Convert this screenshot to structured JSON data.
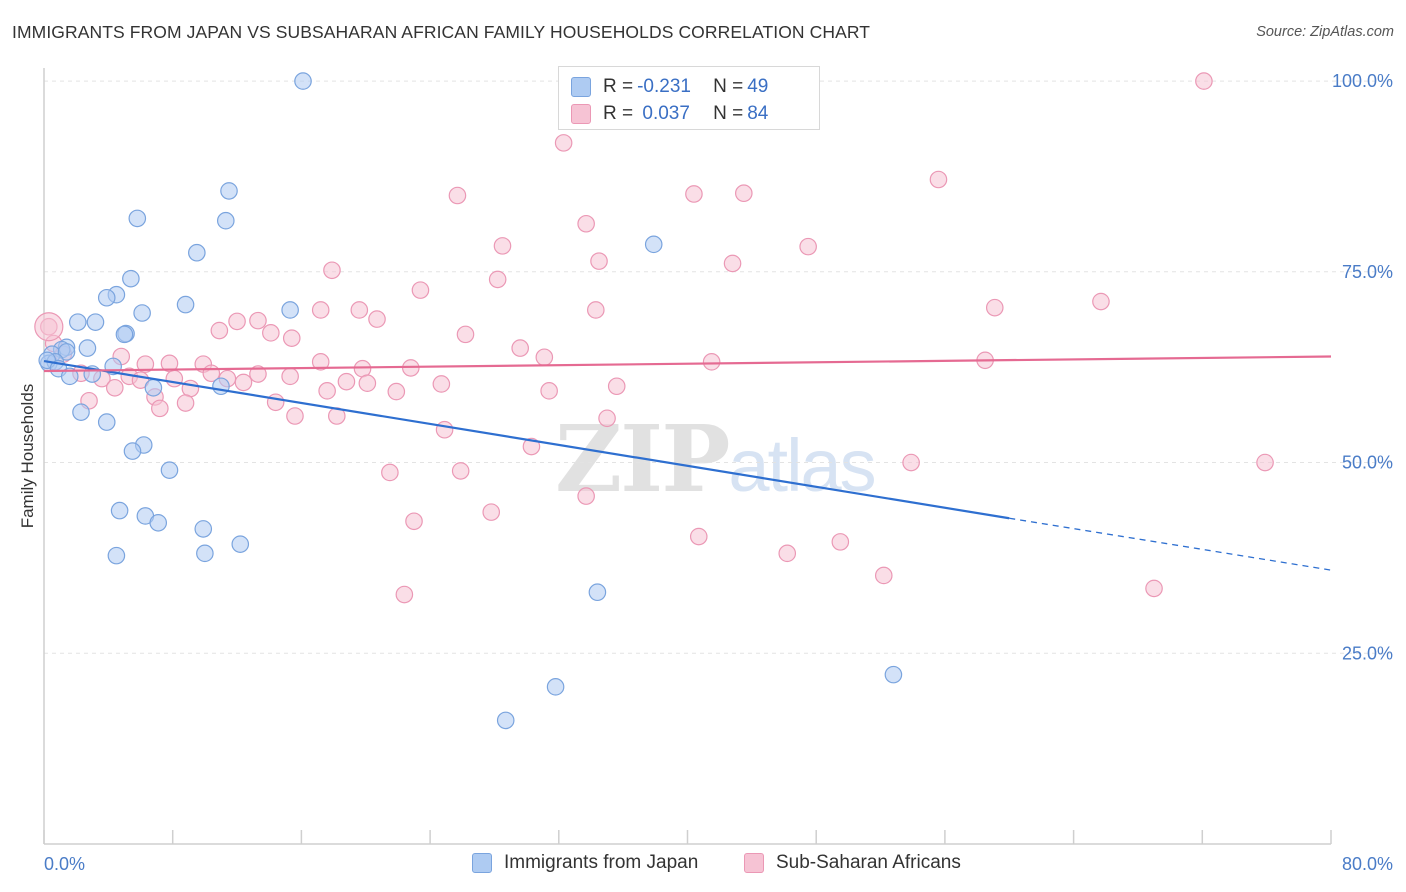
{
  "title": "IMMIGRANTS FROM JAPAN VS SUBSAHARAN AFRICAN FAMILY HOUSEHOLDS CORRELATION CHART",
  "source": "Source: ZipAtlas.com",
  "watermark": {
    "zip": "ZIP",
    "atlas": "atlas"
  },
  "legend": {
    "series1": {
      "r_label": "R = ",
      "r_value": "-0.231",
      "n_label": "N = ",
      "n_value": "49"
    },
    "series2": {
      "r_label": "R = ",
      "r_value": " 0.037",
      "n_label": "N = ",
      "n_value": "84"
    }
  },
  "bottom_legend": {
    "series1": "Immigrants from Japan",
    "series2": "Sub-Saharan Africans"
  },
  "colors": {
    "blue_fill": "#aecbf2",
    "blue_stroke": "#7aa4de",
    "blue_line": "#2e6fd0",
    "pink_fill": "#f6c3d4",
    "pink_stroke": "#eb98b5",
    "pink_line": "#e56a92"
  },
  "chart_data": {
    "type": "scatter",
    "title": "IMMIGRANTS FROM JAPAN VS SUBSAHARAN AFRICAN FAMILY HOUSEHOLDS CORRELATION CHART",
    "xlabel": "",
    "ylabel": "Family Households",
    "xlim": [
      0,
      80
    ],
    "ylim": [
      0,
      102.5
    ],
    "x_tick_labels": [
      "0.0%",
      "80.0%"
    ],
    "y_ticks": [
      25,
      50,
      75,
      100
    ],
    "y_tick_labels": [
      "25.0%",
      "50.0%",
      "75.0%",
      "100.0%"
    ],
    "series": [
      {
        "name": "Immigrants from Japan",
        "color": "blue",
        "trend": {
          "x0": 0,
          "y0": 63.3,
          "x1": 60,
          "y1": 42.7,
          "dash_to_x": 80,
          "dash_to_y": 35.9
        },
        "points": [
          [
            16.1,
            100.0
          ],
          [
            11.5,
            85.6
          ],
          [
            5.8,
            82.0
          ],
          [
            11.3,
            81.7
          ],
          [
            9.5,
            77.5
          ],
          [
            37.9,
            78.6
          ],
          [
            5.4,
            74.1
          ],
          [
            4.5,
            72.0
          ],
          [
            3.9,
            71.6
          ],
          [
            8.8,
            70.7
          ],
          [
            15.3,
            70.0
          ],
          [
            6.1,
            69.6
          ],
          [
            2.1,
            68.4
          ],
          [
            3.2,
            68.4
          ],
          [
            5.1,
            66.9
          ],
          [
            5.0,
            66.8
          ],
          [
            1.4,
            65.1
          ],
          [
            2.7,
            65.0
          ],
          [
            1.1,
            64.8
          ],
          [
            0.5,
            64.2
          ],
          [
            1.4,
            64.5
          ],
          [
            0.3,
            63.0
          ],
          [
            0.7,
            63.2
          ],
          [
            0.2,
            63.4
          ],
          [
            4.3,
            62.6
          ],
          [
            0.9,
            62.3
          ],
          [
            3.0,
            61.6
          ],
          [
            1.6,
            61.3
          ],
          [
            6.8,
            59.8
          ],
          [
            11.0,
            60.0
          ],
          [
            2.3,
            56.6
          ],
          [
            3.9,
            55.3
          ],
          [
            6.2,
            52.3
          ],
          [
            5.5,
            51.5
          ],
          [
            7.8,
            49.0
          ],
          [
            4.7,
            43.7
          ],
          [
            6.3,
            43.0
          ],
          [
            7.1,
            42.1
          ],
          [
            9.9,
            41.3
          ],
          [
            12.2,
            39.3
          ],
          [
            4.5,
            37.8
          ],
          [
            10.0,
            38.1
          ],
          [
            34.4,
            33.0
          ],
          [
            31.8,
            20.6
          ],
          [
            28.7,
            16.2
          ],
          [
            52.8,
            22.2
          ]
        ]
      },
      {
        "name": "Sub-Saharan Africans",
        "color": "pink",
        "trend": {
          "x0": 0,
          "y0": 62.0,
          "x1": 80,
          "y1": 63.9
        },
        "points": [
          [
            72.1,
            100.0
          ],
          [
            32.3,
            91.9
          ],
          [
            55.6,
            87.1
          ],
          [
            25.7,
            85.0
          ],
          [
            40.4,
            85.2
          ],
          [
            43.5,
            85.3
          ],
          [
            33.7,
            81.3
          ],
          [
            28.5,
            78.4
          ],
          [
            47.5,
            78.3
          ],
          [
            34.5,
            76.4
          ],
          [
            42.8,
            76.1
          ],
          [
            17.9,
            75.2
          ],
          [
            28.2,
            74.0
          ],
          [
            23.4,
            72.6
          ],
          [
            59.1,
            70.3
          ],
          [
            65.7,
            71.1
          ],
          [
            17.2,
            70.0
          ],
          [
            19.6,
            70.0
          ],
          [
            34.3,
            70.0
          ],
          [
            12.0,
            68.5
          ],
          [
            20.7,
            68.8
          ],
          [
            0.3,
            67.8
          ],
          [
            13.3,
            68.6
          ],
          [
            10.9,
            67.3
          ],
          [
            14.1,
            67.0
          ],
          [
            26.2,
            66.8
          ],
          [
            15.4,
            66.3
          ],
          [
            29.6,
            65.0
          ],
          [
            0.6,
            65.6
          ],
          [
            1.2,
            64.2
          ],
          [
            4.8,
            63.9
          ],
          [
            31.1,
            63.8
          ],
          [
            58.5,
            63.4
          ],
          [
            41.5,
            63.2
          ],
          [
            17.2,
            63.2
          ],
          [
            6.3,
            62.9
          ],
          [
            7.8,
            63.0
          ],
          [
            9.9,
            62.9
          ],
          [
            19.8,
            62.3
          ],
          [
            22.8,
            62.4
          ],
          [
            2.3,
            61.7
          ],
          [
            10.4,
            61.7
          ],
          [
            13.3,
            61.6
          ],
          [
            15.3,
            61.3
          ],
          [
            5.3,
            61.3
          ],
          [
            11.4,
            61.0
          ],
          [
            8.1,
            61.0
          ],
          [
            3.6,
            61.0
          ],
          [
            6.0,
            60.8
          ],
          [
            12.4,
            60.5
          ],
          [
            18.8,
            60.6
          ],
          [
            20.1,
            60.4
          ],
          [
            24.7,
            60.3
          ],
          [
            35.6,
            60.0
          ],
          [
            4.4,
            59.8
          ],
          [
            9.1,
            59.7
          ],
          [
            17.6,
            59.4
          ],
          [
            21.9,
            59.3
          ],
          [
            31.4,
            59.4
          ],
          [
            6.9,
            58.6
          ],
          [
            2.8,
            58.1
          ],
          [
            8.8,
            57.8
          ],
          [
            14.4,
            57.9
          ],
          [
            7.2,
            57.1
          ],
          [
            15.6,
            56.1
          ],
          [
            18.2,
            56.1
          ],
          [
            35.0,
            55.8
          ],
          [
            24.9,
            54.3
          ],
          [
            30.3,
            52.1
          ],
          [
            53.9,
            50.0
          ],
          [
            75.9,
            50.0
          ],
          [
            21.5,
            48.7
          ],
          [
            25.9,
            48.9
          ],
          [
            33.7,
            45.6
          ],
          [
            27.8,
            43.5
          ],
          [
            23.0,
            42.3
          ],
          [
            40.7,
            40.3
          ],
          [
            49.5,
            39.6
          ],
          [
            46.2,
            38.1
          ],
          [
            52.2,
            35.2
          ],
          [
            69.0,
            33.5
          ],
          [
            22.4,
            32.7
          ]
        ]
      }
    ]
  }
}
